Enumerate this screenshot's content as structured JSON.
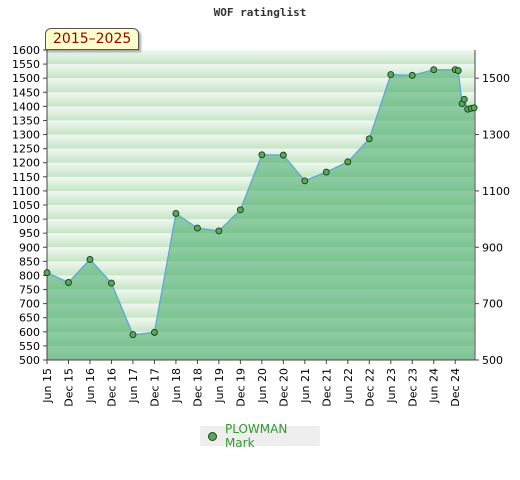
{
  "chart_data": {
    "type": "line",
    "title": "WOF ratinglist",
    "period": "2015–2025",
    "series": [
      {
        "name": "PLOWMAN Mark",
        "color": "#55aa55",
        "line_color": "#5aa9d6",
        "x": [
          2015.42,
          2015.92,
          2016.42,
          2016.92,
          2017.42,
          2017.92,
          2018.42,
          2018.92,
          2019.42,
          2019.92,
          2020.42,
          2020.92,
          2021.42,
          2021.92,
          2022.42,
          2022.92,
          2023.42,
          2023.92,
          2024.42,
          2024.92,
          2024.99,
          2025.08,
          2025.13,
          2025.21,
          2025.29,
          2025.36
        ],
        "y": [
          810,
          775,
          857,
          773,
          590,
          598,
          1020,
          968,
          958,
          1033,
          1228,
          1227,
          1136,
          1167,
          1203,
          1285,
          1513,
          1510,
          1530,
          1530,
          1527,
          1410,
          1425,
          1390,
          1393,
          1395
        ]
      }
    ],
    "xlim": [
      2015.42,
      2025.38
    ],
    "x_ticks": [
      {
        "label": "Jun 15",
        "x": 2015.42
      },
      {
        "label": "Dec 15",
        "x": 2015.92
      },
      {
        "label": "Jun 16",
        "x": 2016.42
      },
      {
        "label": "Dec 16",
        "x": 2016.92
      },
      {
        "label": "Jun 17",
        "x": 2017.42
      },
      {
        "label": "Dec 17",
        "x": 2017.92
      },
      {
        "label": "Jun 18",
        "x": 2018.42
      },
      {
        "label": "Dec 18",
        "x": 2018.92
      },
      {
        "label": "Jun 19",
        "x": 2019.42
      },
      {
        "label": "Dec 19",
        "x": 2019.92
      },
      {
        "label": "Jun 20",
        "x": 2020.42
      },
      {
        "label": "Dec 20",
        "x": 2020.92
      },
      {
        "label": "Jun 21",
        "x": 2021.42
      },
      {
        "label": "Dec 21",
        "x": 2021.92
      },
      {
        "label": "Jun 22",
        "x": 2022.42
      },
      {
        "label": "Dec 22",
        "x": 2022.92
      },
      {
        "label": "Jun 23",
        "x": 2023.42
      },
      {
        "label": "Dec 23",
        "x": 2023.92
      },
      {
        "label": "Jun 24",
        "x": 2024.42
      },
      {
        "label": "Dec 24",
        "x": 2024.92
      }
    ],
    "ylim": [
      500,
      1600
    ],
    "y_ticks_left": [
      500,
      550,
      600,
      650,
      700,
      750,
      800,
      850,
      900,
      950,
      1000,
      1050,
      1100,
      1150,
      1200,
      1250,
      1300,
      1350,
      1400,
      1450,
      1500,
      1550,
      1600
    ],
    "y_ticks_right": [
      500,
      700,
      900,
      1100,
      1300,
      1500
    ],
    "band_colors": [
      "#f1f8f1",
      "#c5e5c5"
    ],
    "area_color": "#3ea864",
    "grid": true,
    "legend_position": "bottom-center"
  }
}
